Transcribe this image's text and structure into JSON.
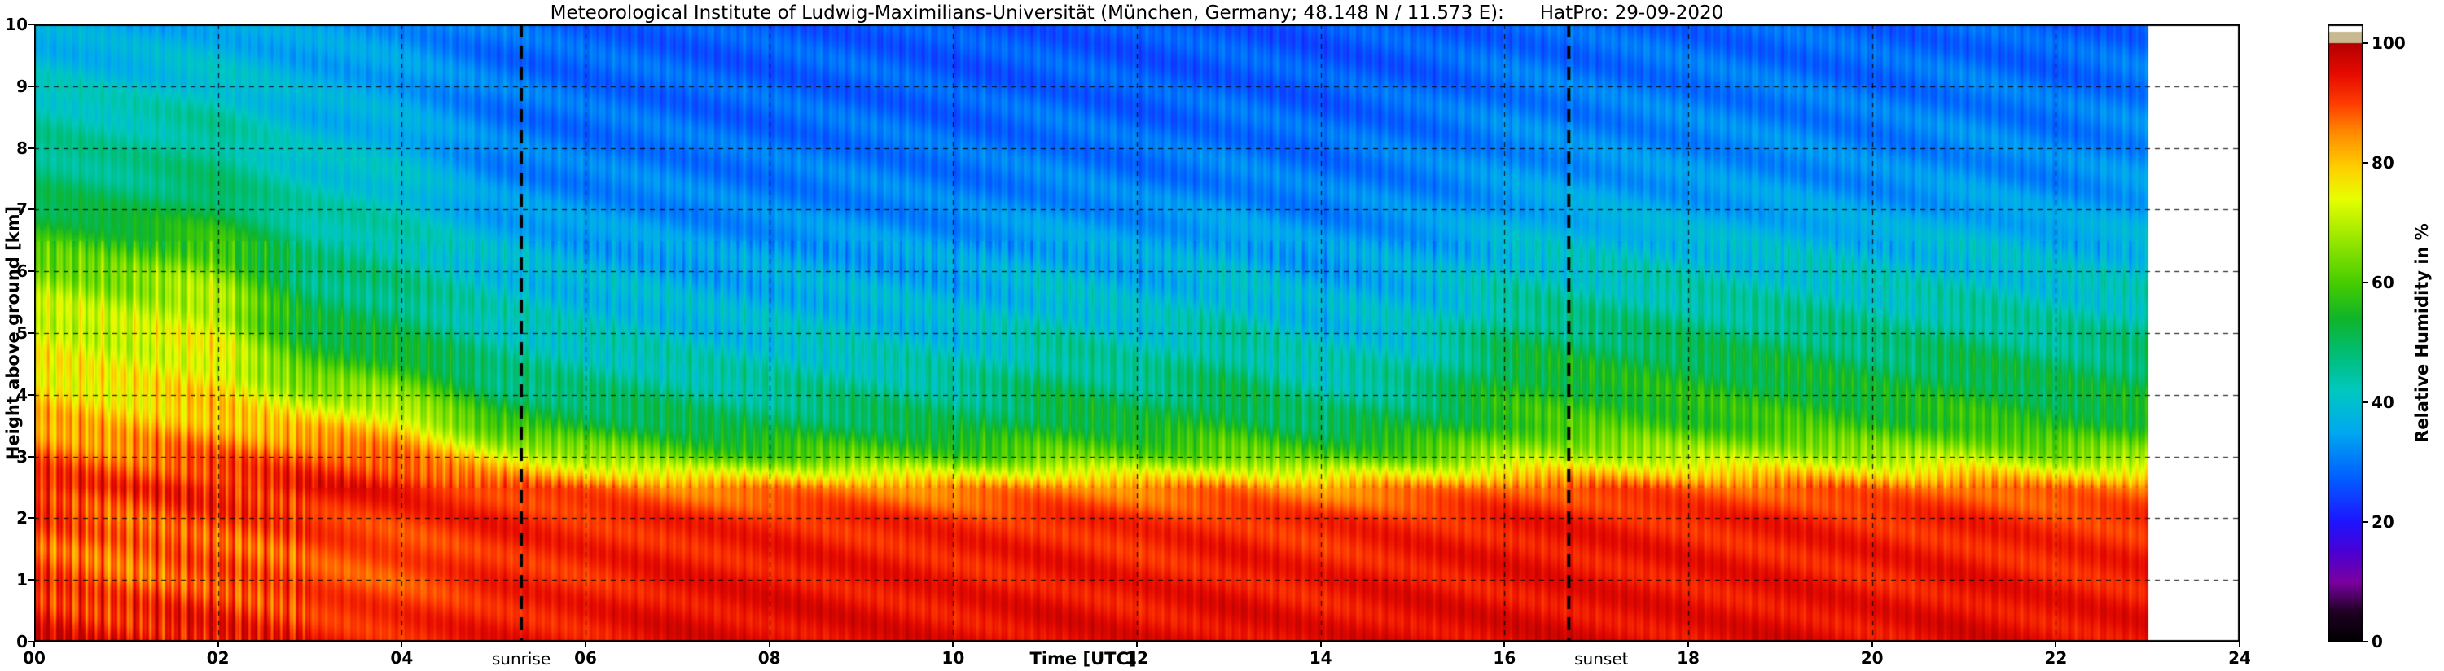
{
  "title": "Meteorological Institute of Ludwig-Maximilians-Universität (München, Germany; 48.148 N / 11.573 E):      HatPro: 29-09-2020",
  "axes": {
    "x_label": "Time [UTC]",
    "y_label": "Height above ground [km]",
    "x_ticks": [
      "00",
      "02",
      "04",
      "06",
      "08",
      "10",
      "12",
      "14",
      "16",
      "18",
      "20",
      "22",
      "24"
    ],
    "x_tick_hours": [
      0,
      2,
      4,
      6,
      8,
      10,
      12,
      14,
      16,
      18,
      20,
      22,
      24
    ],
    "y_ticks": [
      "0",
      "1",
      "2",
      "3",
      "4",
      "5",
      "6",
      "7",
      "8",
      "9",
      "10"
    ],
    "y_tick_km": [
      0,
      1,
      2,
      3,
      4,
      5,
      6,
      7,
      8,
      9,
      10
    ]
  },
  "annotations": {
    "sunrise": {
      "label": "sunrise",
      "hour": 5.3
    },
    "sunset": {
      "label": "sunset",
      "hour": 16.7
    }
  },
  "colorbar": {
    "label": "Relative Humidity in %",
    "ticks": [
      "0",
      "20",
      "40",
      "60",
      "80",
      "100"
    ],
    "tick_values": [
      0,
      20,
      40,
      60,
      80,
      100
    ],
    "over_color": "#c8b991"
  },
  "chart_data": {
    "type": "heatmap",
    "title": "Meteorological Institute of Ludwig-Maximilians-Universität (München, Germany; 48.148 N / 11.573 E): HatPro: 29-09-2020",
    "xlabel": "Time [UTC]",
    "ylabel": "Height above ground [km]",
    "zlabel": "Relative Humidity in %",
    "x_range": [
      0,
      24
    ],
    "y_range": [
      0,
      10
    ],
    "z_range": [
      0,
      100
    ],
    "grid": true,
    "data_end_hour": 23,
    "sunrise_hour": 5.3,
    "sunset_hour": 16.7,
    "x": [
      0,
      1,
      2,
      3,
      4,
      5,
      6,
      7,
      8,
      9,
      10,
      11,
      12,
      13,
      14,
      15,
      16,
      17,
      18,
      19,
      20,
      21,
      22,
      23
    ],
    "y": [
      0,
      0.5,
      1,
      1.5,
      2,
      2.5,
      3,
      3.5,
      4,
      4.5,
      5,
      5.5,
      6,
      6.5,
      7,
      7.5,
      8,
      8.5,
      9,
      9.5,
      10
    ],
    "values": [
      [
        96,
        96,
        95,
        93,
        93,
        94,
        94,
        96,
        95,
        96,
        95,
        96,
        95,
        96,
        95,
        96,
        96,
        96,
        95,
        96,
        95,
        96,
        95,
        95
      ],
      [
        93,
        92,
        92,
        91,
        91,
        93,
        93,
        95,
        95,
        95,
        94,
        95,
        94,
        95,
        94,
        95,
        95,
        95,
        94,
        95,
        94,
        95,
        94,
        94
      ],
      [
        90,
        88,
        89,
        89,
        89,
        92,
        92,
        94,
        94,
        94,
        93,
        94,
        93,
        94,
        93,
        94,
        94,
        94,
        94,
        94,
        93,
        94,
        93,
        93
      ],
      [
        88,
        87,
        88,
        89,
        89,
        92,
        92,
        93,
        93,
        93,
        93,
        93,
        92,
        93,
        92,
        93,
        94,
        94,
        93,
        93,
        93,
        93,
        92,
        92
      ],
      [
        90,
        89,
        90,
        91,
        91,
        93,
        92,
        92,
        92,
        92,
        91,
        92,
        91,
        92,
        91,
        92,
        93,
        93,
        92,
        93,
        92,
        92,
        91,
        91
      ],
      [
        93,
        92,
        93,
        94,
        94,
        90,
        88,
        86,
        85,
        86,
        84,
        86,
        85,
        86,
        84,
        85,
        88,
        89,
        88,
        88,
        87,
        88,
        86,
        86
      ],
      [
        88,
        87,
        88,
        89,
        88,
        75,
        68,
        62,
        60,
        62,
        60,
        63,
        62,
        64,
        60,
        62,
        68,
        70,
        69,
        70,
        68,
        69,
        66,
        66
      ],
      [
        82,
        81,
        82,
        80,
        78,
        58,
        54,
        52,
        50,
        52,
        50,
        54,
        53,
        55,
        50,
        52,
        58,
        60,
        58,
        59,
        57,
        58,
        55,
        56
      ],
      [
        78,
        77,
        78,
        68,
        66,
        50,
        48,
        47,
        45,
        47,
        46,
        50,
        48,
        51,
        45,
        47,
        55,
        56,
        55,
        55,
        53,
        54,
        52,
        52
      ],
      [
        75,
        74,
        75,
        58,
        57,
        46,
        44,
        43,
        42,
        43,
        42,
        46,
        44,
        47,
        42,
        43,
        52,
        53,
        52,
        52,
        50,
        51,
        49,
        49
      ],
      [
        73,
        72,
        73,
        52,
        51,
        43,
        41,
        40,
        39,
        40,
        39,
        43,
        41,
        44,
        39,
        40,
        48,
        49,
        48,
        48,
        46,
        47,
        45,
        46
      ],
      [
        70,
        69,
        70,
        49,
        48,
        41,
        39,
        38,
        37,
        38,
        37,
        40,
        38,
        41,
        37,
        38,
        44,
        45,
        44,
        44,
        43,
        43,
        42,
        42
      ],
      [
        65,
        64,
        65,
        47,
        46,
        39,
        37,
        36,
        35,
        36,
        35,
        38,
        36,
        38,
        35,
        36,
        41,
        42,
        41,
        41,
        40,
        40,
        39,
        40
      ],
      [
        58,
        57,
        58,
        45,
        44,
        37,
        35,
        34,
        33,
        34,
        33,
        35,
        34,
        36,
        33,
        34,
        38,
        39,
        38,
        38,
        37,
        38,
        37,
        37
      ],
      [
        52,
        51,
        52,
        43,
        42,
        34,
        33,
        32,
        31,
        32,
        31,
        33,
        32,
        33,
        31,
        32,
        35,
        36,
        35,
        35,
        34,
        35,
        34,
        35
      ],
      [
        48,
        47,
        48,
        41,
        40,
        32,
        31,
        31,
        30,
        31,
        30,
        31,
        30,
        31,
        30,
        31,
        33,
        34,
        33,
        33,
        32,
        33,
        32,
        33
      ],
      [
        46,
        45,
        46,
        39,
        38,
        31,
        30,
        30,
        29,
        30,
        29,
        30,
        29,
        30,
        29,
        30,
        32,
        32,
        32,
        32,
        31,
        32,
        31,
        32
      ],
      [
        44,
        43,
        44,
        37,
        36,
        30,
        29,
        29,
        28,
        29,
        28,
        29,
        28,
        29,
        28,
        29,
        31,
        31,
        31,
        31,
        30,
        31,
        30,
        31
      ],
      [
        41,
        40,
        41,
        36,
        35,
        30,
        29,
        28,
        28,
        28,
        27,
        28,
        27,
        28,
        27,
        28,
        30,
        30,
        30,
        30,
        29,
        30,
        29,
        30
      ],
      [
        38,
        37,
        38,
        35,
        34,
        29,
        28,
        28,
        27,
        28,
        27,
        27,
        27,
        27,
        27,
        27,
        29,
        29,
        29,
        29,
        28,
        29,
        28,
        29
      ],
      [
        36,
        35,
        36,
        34,
        33,
        29,
        28,
        27,
        27,
        27,
        26,
        27,
        26,
        27,
        26,
        27,
        28,
        28,
        28,
        28,
        28,
        28,
        27,
        28
      ]
    ],
    "colormap": [
      [
        0.0,
        "#000000"
      ],
      [
        0.05,
        "#1e0022"
      ],
      [
        0.1,
        "#7a00a0"
      ],
      [
        0.15,
        "#4b00d2"
      ],
      [
        0.2,
        "#1e14ff"
      ],
      [
        0.28,
        "#0064ff"
      ],
      [
        0.35,
        "#00a8f0"
      ],
      [
        0.42,
        "#00c8c0"
      ],
      [
        0.48,
        "#00be78"
      ],
      [
        0.54,
        "#0fb42a"
      ],
      [
        0.6,
        "#46cd00"
      ],
      [
        0.67,
        "#96e600"
      ],
      [
        0.74,
        "#e6ff00"
      ],
      [
        0.79,
        "#ffd200"
      ],
      [
        0.85,
        "#ff8c00"
      ],
      [
        0.9,
        "#ff3c00"
      ],
      [
        0.95,
        "#e60a00"
      ],
      [
        1.0,
        "#b40000"
      ]
    ]
  }
}
